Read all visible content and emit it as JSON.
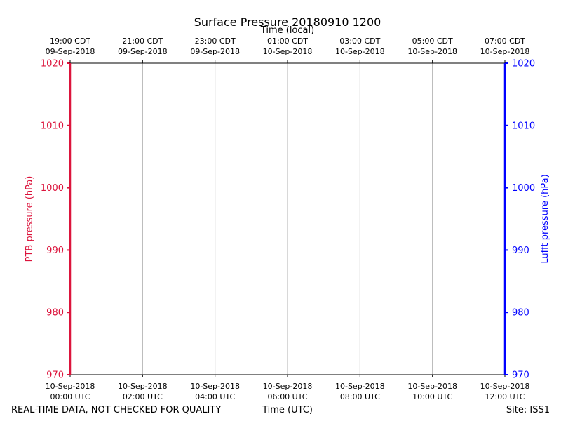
{
  "chart_data": {
    "type": "line",
    "title": "Surface Pressure 20180910 1200",
    "xlabel_bottom": "Time (UTC)",
    "xlabel_top": "Time (local)",
    "ylabel_left": "PTB pressure (hPa)",
    "ylabel_right": "Lufft pressure (hPa)",
    "ylim": [
      970,
      1020
    ],
    "yticks": [
      970,
      980,
      990,
      1000,
      1010,
      1020
    ],
    "xlim": [
      "2018-09-10 00:00 UTC",
      "2018-09-10 12:00 UTC"
    ],
    "xticks_hours": [
      0,
      2,
      4,
      6,
      8,
      10,
      12
    ],
    "bottom_tick_labels": [
      [
        "10-Sep-2018",
        "00:00 UTC"
      ],
      [
        "10-Sep-2018",
        "02:00 UTC"
      ],
      [
        "10-Sep-2018",
        "04:00 UTC"
      ],
      [
        "10-Sep-2018",
        "06:00 UTC"
      ],
      [
        "10-Sep-2018",
        "08:00 UTC"
      ],
      [
        "10-Sep-2018",
        "10:00 UTC"
      ],
      [
        "10-Sep-2018",
        "12:00 UTC"
      ]
    ],
    "top_tick_labels": [
      [
        "19:00 CDT",
        "09-Sep-2018"
      ],
      [
        "21:00 CDT",
        "09-Sep-2018"
      ],
      [
        "23:00 CDT",
        "09-Sep-2018"
      ],
      [
        "01:00 CDT",
        "10-Sep-2018"
      ],
      [
        "03:00 CDT",
        "10-Sep-2018"
      ],
      [
        "05:00 CDT",
        "10-Sep-2018"
      ],
      [
        "07:00 CDT",
        "10-Sep-2018"
      ]
    ],
    "grid": "vertical",
    "series": [
      {
        "name": "PTB pressure (hPa)",
        "axis": "left",
        "color": "#dc143c",
        "values": []
      },
      {
        "name": "Lufft pressure (hPa)",
        "axis": "right",
        "color": "#0000ff",
        "values": []
      }
    ]
  },
  "footer": {
    "left": "REAL-TIME DATA, NOT CHECKED FOR QUALITY",
    "center": "Time (UTC)",
    "right": "Site: ISS1"
  },
  "colors": {
    "left_axis": "#dc143c",
    "right_axis": "#0000ff",
    "grid": "#b0b0b0"
  }
}
